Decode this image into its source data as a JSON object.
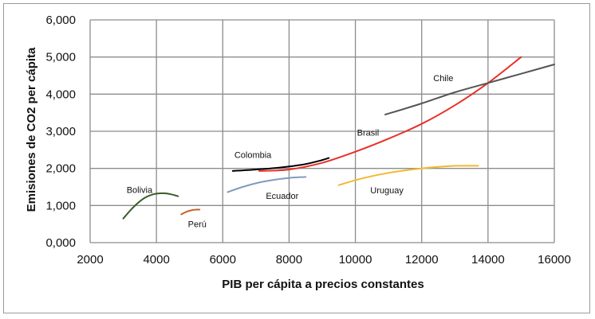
{
  "chart_data": {
    "type": "line",
    "xlabel": "PIB per cápita a precios constantes",
    "ylabel": "Emisiones de CO2 per cápita",
    "xlim": [
      2000,
      16000
    ],
    "ylim": [
      0,
      6
    ],
    "x_ticks": [
      2000,
      4000,
      6000,
      8000,
      10000,
      12000,
      14000,
      16000
    ],
    "y_ticks": [
      0,
      1,
      2,
      3,
      4,
      5,
      6
    ],
    "x_tick_labels": [
      "2000",
      "4000",
      "6000",
      "8000",
      "10000",
      "12000",
      "14000",
      "16000"
    ],
    "y_tick_labels": [
      "0,000",
      "1,000",
      "2,000",
      "3,000",
      "4,000",
      "5,000",
      "6,000"
    ],
    "grid": true,
    "legend": "none",
    "series": [
      {
        "name": "Bolivia",
        "color": "#3a5a28",
        "points": [
          [
            3000,
            0.65
          ],
          [
            3300,
            0.95
          ],
          [
            3600,
            1.18
          ],
          [
            3900,
            1.3
          ],
          [
            4200,
            1.33
          ],
          [
            4450,
            1.3
          ],
          [
            4650,
            1.25
          ]
        ]
      },
      {
        "name": "Perú",
        "color": "#c8612a",
        "points": [
          [
            4750,
            0.76
          ],
          [
            4900,
            0.83
          ],
          [
            5050,
            0.87
          ],
          [
            5200,
            0.89
          ],
          [
            5300,
            0.89
          ]
        ]
      },
      {
        "name": "Ecuador",
        "color": "#7f9bc0",
        "points": [
          [
            6150,
            1.36
          ],
          [
            6600,
            1.5
          ],
          [
            7100,
            1.62
          ],
          [
            7600,
            1.7
          ],
          [
            8100,
            1.75
          ],
          [
            8500,
            1.77
          ]
        ]
      },
      {
        "name": "Colombia",
        "color": "#000000",
        "points": [
          [
            6300,
            1.93
          ],
          [
            7000,
            1.97
          ],
          [
            7700,
            2.02
          ],
          [
            8400,
            2.1
          ],
          [
            8900,
            2.2
          ],
          [
            9200,
            2.28
          ]
        ]
      },
      {
        "name": "Brasil",
        "color": "#e8302a",
        "points": [
          [
            7100,
            1.93
          ],
          [
            8000,
            1.97
          ],
          [
            9000,
            2.15
          ],
          [
            10000,
            2.45
          ],
          [
            11000,
            2.8
          ],
          [
            12000,
            3.2
          ],
          [
            13000,
            3.7
          ],
          [
            14000,
            4.3
          ],
          [
            15000,
            5.0
          ]
        ]
      },
      {
        "name": "Uruguay",
        "color": "#f2b830",
        "points": [
          [
            9500,
            1.55
          ],
          [
            10200,
            1.73
          ],
          [
            11000,
            1.88
          ],
          [
            11800,
            1.98
          ],
          [
            12500,
            2.04
          ],
          [
            13100,
            2.07
          ],
          [
            13700,
            2.07
          ]
        ]
      },
      {
        "name": "Chile",
        "color": "#555555",
        "points": [
          [
            10900,
            3.45
          ],
          [
            12000,
            3.75
          ],
          [
            13000,
            4.05
          ],
          [
            14000,
            4.3
          ],
          [
            15000,
            4.55
          ],
          [
            16000,
            4.8
          ]
        ]
      }
    ],
    "annotations": [
      {
        "text": "Bolivia",
        "series": "Bolivia",
        "x": 3100,
        "y": 1.34
      },
      {
        "text": "Perú",
        "series": "Perú",
        "x": 4950,
        "y": 0.42
      },
      {
        "text": "Ecuador",
        "series": "Ecuador",
        "x": 7300,
        "y": 1.18
      },
      {
        "text": "Colombia",
        "series": "Colombia",
        "x": 6350,
        "y": 2.28
      },
      {
        "text": "Brasil",
        "series": "Brasil",
        "x": 10050,
        "y": 2.88
      },
      {
        "text": "Uruguay",
        "series": "Uruguay",
        "x": 10450,
        "y": 1.33
      },
      {
        "text": "Chile",
        "series": "Chile",
        "x": 12350,
        "y": 4.35
      }
    ]
  }
}
